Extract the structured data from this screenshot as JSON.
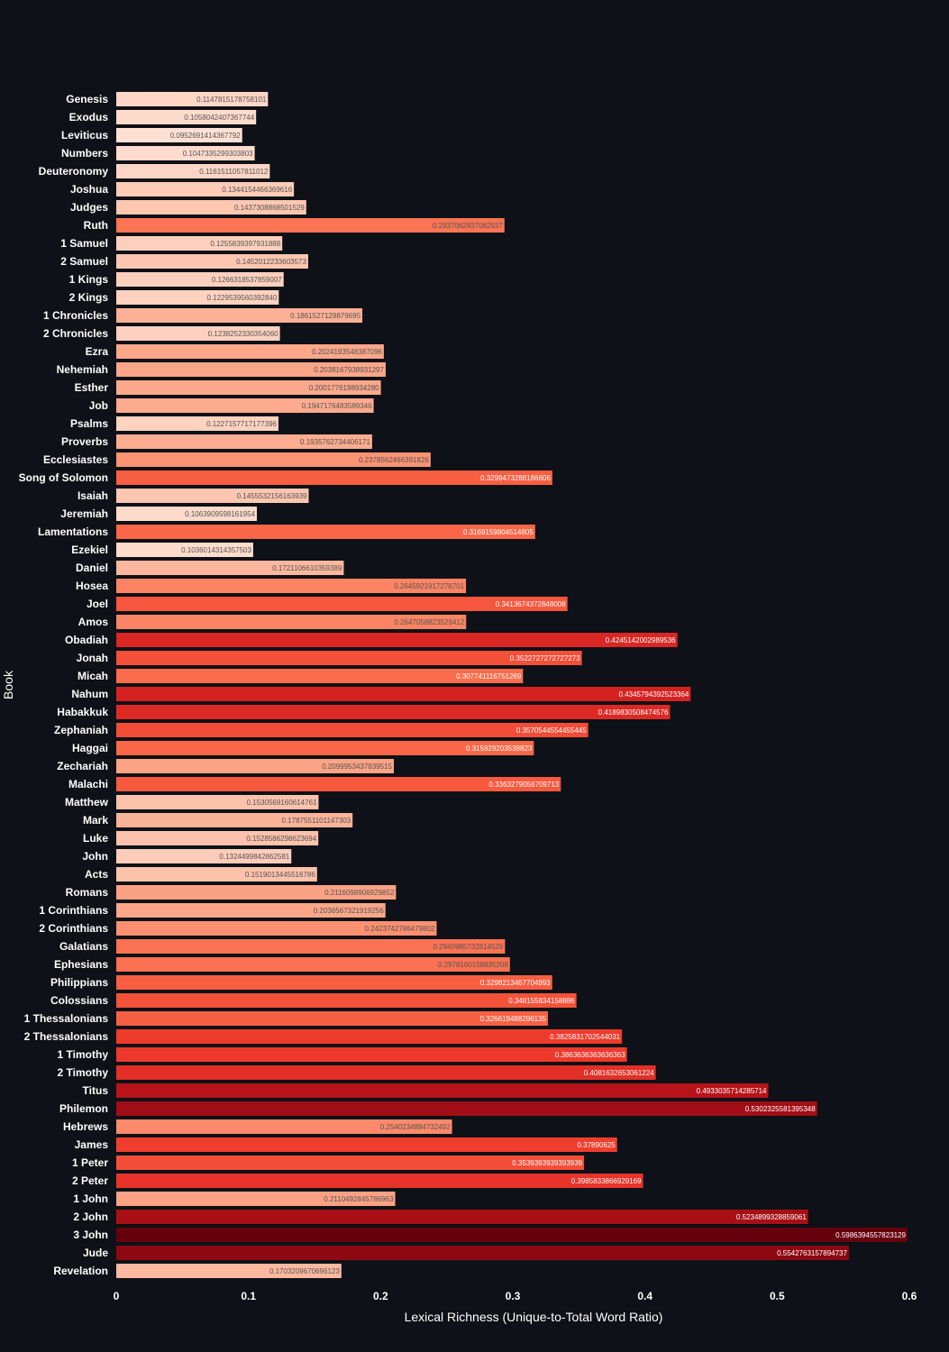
{
  "chart_data": {
    "type": "bar",
    "orientation": "horizontal",
    "title": "",
    "xlabel": "Lexical Richness (Unique-to-Total Word Ratio)",
    "ylabel": "Book",
    "xlim": [
      0,
      0.6
    ],
    "xticks": [
      "0",
      "0.1",
      "0.2",
      "0.3",
      "0.4",
      "0.5",
      "0.6"
    ],
    "grid": false,
    "colorscale": [
      "#fee0d2",
      "#fcbba1",
      "#fc9272",
      "#fb6a4a",
      "#ef3b2c",
      "#cb181d",
      "#a50f15",
      "#67000d"
    ],
    "categories": [
      "Genesis",
      "Exodus",
      "Leviticus",
      "Numbers",
      "Deuteronomy",
      "Joshua",
      "Judges",
      "Ruth",
      "1 Samuel",
      "2 Samuel",
      "1 Kings",
      "2 Kings",
      "1 Chronicles",
      "2 Chronicles",
      "Ezra",
      "Nehemiah",
      "Esther",
      "Job",
      "Psalms",
      "Proverbs",
      "Ecclesiastes",
      "Song of Solomon",
      "Isaiah",
      "Jeremiah",
      "Lamentations",
      "Ezekiel",
      "Daniel",
      "Hosea",
      "Joel",
      "Amos",
      "Obadiah",
      "Jonah",
      "Micah",
      "Nahum",
      "Habakkuk",
      "Zephaniah",
      "Haggai",
      "Zechariah",
      "Malachi",
      "Matthew",
      "Mark",
      "Luke",
      "John",
      "Acts",
      "Romans",
      "1 Corinthians",
      "2 Corinthians",
      "Galatians",
      "Ephesians",
      "Philippians",
      "Colossians",
      "1 Thessalonians",
      "2 Thessalonians",
      "1 Timothy",
      "2 Timothy",
      "Titus",
      "Philemon",
      "Hebrews",
      "James",
      "1 Peter",
      "2 Peter",
      "1 John",
      "2 John",
      "3 John",
      "Jude",
      "Revelation"
    ],
    "values": [
      0.1147815178758101,
      0.1058042407367744,
      0.0952691414367792,
      0.1047335299303803,
      0.1161511057811012,
      0.1344154466369616,
      0.1437308868501529,
      0.2937062937062937,
      0.1255839397931888,
      0.1452012233603573,
      0.1266318537859007,
      0.122953956039284,
      0.1861527129879695,
      0.123825233035406,
      0.2024193548387096,
      0.2038167938931297,
      0.200177619893428,
      0.1947176483589346,
      0.1227157717177396,
      0.1935762734406171,
      0.2378562466391826,
      0.3299473288186606,
      0.1455532156163939,
      0.1063909598161954,
      0.3169159804514805,
      0.1036014314357503,
      0.1721106610359389,
      0.2645921917278701,
      0.3413674372848008,
      0.2647058823529412,
      0.4245142002989536,
      0.3522727272727273,
      0.307741116751269,
      0.4345794392523364,
      0.4189830508474576,
      0.3570544554455445,
      0.315929203539823,
      0.2099953437839515,
      0.3363279056709713,
      0.1530569160614761,
      0.1787551101147303,
      0.1528586298623694,
      0.1324499842862581,
      0.1519013445516786,
      0.2116098906929852,
      0.2036567321919256,
      0.2423742786479802,
      0.2940985732814526,
      0.2978160158835208,
      0.3298213467704993,
      0.348155834158886,
      0.326619488296135,
      0.3825831702544031,
      0.3863636363636363,
      0.4081632653061224,
      0.4933035714285714,
      0.5302325581395348,
      0.2540234884732492,
      0.37890625,
      0.3539393939393939,
      0.3985833866929169,
      0.2110492845786963,
      0.5234899328859061,
      0.5986394557823129,
      0.5542763157894737,
      0.1703209670696123
    ],
    "value_labels": [
      "0.1147815178758101",
      "0.1058042407367744",
      "0.0952691414367792",
      "0.1047335299303803",
      "0.1161511057811012",
      "0.1344154466369616",
      "0.1437308868501529",
      "0.2937062937062937",
      "0.1255839397931888",
      "0.1452012233603573",
      "0.1266318537859007",
      "0.1229539560392840",
      "0.1861527129879695",
      "0.1238252330354060",
      "0.2024193548387096",
      "0.2038167938931297",
      "0.2001776198934280",
      "0.1947176483589346",
      "0.1227157717177396",
      "0.1935762734406171",
      "0.2378562466391826",
      "0.3299473288186606",
      "0.1455532156163939",
      "0.1063909598161954",
      "0.3169159804514805",
      "0.1036014314357503",
      "0.1721106610359389",
      "0.2645921917278701",
      "0.3413674372848008",
      "0.2647058823529412",
      "0.4245142002989536",
      "0.3522727272727273",
      "0.307741116751269",
      "0.4345794392523364",
      "0.4189830508474576",
      "0.3570544554455445",
      "0.315929203539823",
      "0.2099953437839515",
      "0.3363279056709713",
      "0.1530569160614761",
      "0.1787551101147303",
      "0.1528586298623694",
      "0.1324499842862581",
      "0.1519013445516786",
      "0.2116098906929852",
      "0.2036567321919256",
      "0.2423742786479802",
      "0.2940985732814526",
      "0.2978160158835208",
      "0.3298213467704993",
      "0.348155834158886",
      "0.326619488296135",
      "0.3825831702544031",
      "0.3863636363636363",
      "0.4081632653061224",
      "0.4933035714285714",
      "0.5302325581395348",
      "0.2540234884732492",
      "0.37890625",
      "0.3539393939393939",
      "0.3985833866929169",
      "0.2110492845786963",
      "0.5234899328859061",
      "0.5986394557823129",
      "0.5542763157894737",
      "0.1703209670696123"
    ]
  }
}
